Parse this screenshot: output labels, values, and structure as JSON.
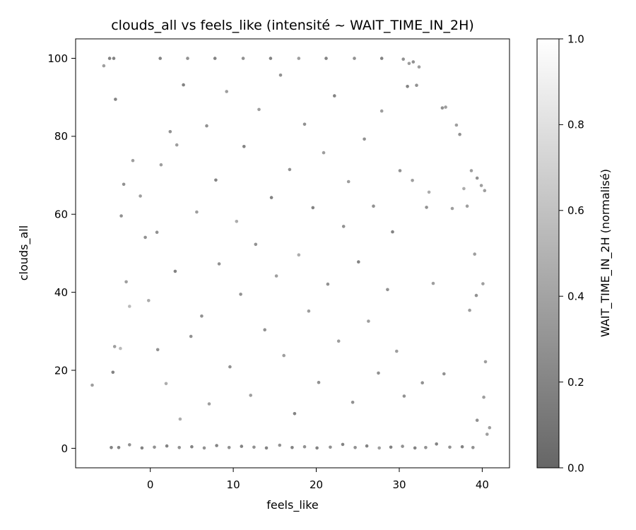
{
  "chart_data": {
    "type": "scatter",
    "title": "clouds_all vs feels_like (intensité ~ WAIT_TIME_IN_2H)",
    "xlabel": "feels_like",
    "ylabel": "clouds_all",
    "xlim": [
      -9,
      43.3
    ],
    "ylim": [
      -5,
      105
    ],
    "xticks": [
      "0",
      "10",
      "20",
      "30",
      "40"
    ],
    "yticks": [
      "0",
      "20",
      "40",
      "60",
      "80",
      "100"
    ],
    "grid": false,
    "colormap": "greys (dark = low, light = high)",
    "colorbar": {
      "label": "WAIT_TIME_IN_2H (normalisé)",
      "range": [
        0.0,
        1.0
      ],
      "ticks": [
        "0.0",
        "0.2",
        "0.4",
        "0.6",
        "0.8",
        "1.0"
      ]
    },
    "series": [
      {
        "points": [
          [
            -7.0,
            16.2,
            0.3
          ],
          [
            -5.6,
            98.1,
            0.3
          ],
          [
            -4.9,
            100,
            0.1
          ],
          [
            -4.4,
            100,
            0.1
          ],
          [
            -4.2,
            89.5,
            0.1
          ],
          [
            -4.3,
            26.1,
            0.3
          ],
          [
            -3.6,
            25.6,
            0.5
          ],
          [
            -4.5,
            19.5,
            0.1
          ],
          [
            -4.7,
            0.2,
            0.1
          ],
          [
            -3.5,
            59.6,
            0.2
          ],
          [
            -2.9,
            42.7,
            0.3
          ],
          [
            -2.5,
            36.4,
            0.5
          ],
          [
            -3.2,
            67.7,
            0.2
          ],
          [
            -2.1,
            73.8,
            0.3
          ],
          [
            -1.2,
            64.7,
            0.3
          ],
          [
            -0.6,
            54.1,
            0.2
          ],
          [
            -0.2,
            37.9,
            0.4
          ],
          [
            0.8,
            55.4,
            0.2
          ],
          [
            1.3,
            72.7,
            0.3
          ],
          [
            0.9,
            25.3,
            0.2
          ],
          [
            1.9,
            16.6,
            0.4
          ],
          [
            2.4,
            81.2,
            0.2
          ],
          [
            3.2,
            77.8,
            0.3
          ],
          [
            3.0,
            45.4,
            0.1
          ],
          [
            4.0,
            93.2,
            0.1
          ],
          [
            3.6,
            7.5,
            0.4
          ],
          [
            4.9,
            28.7,
            0.2
          ],
          [
            5.6,
            60.6,
            0.3
          ],
          [
            6.2,
            33.9,
            0.2
          ],
          [
            6.8,
            82.7,
            0.2
          ],
          [
            7.1,
            11.4,
            0.3
          ],
          [
            7.9,
            68.8,
            0.1
          ],
          [
            8.3,
            47.3,
            0.2
          ],
          [
            9.2,
            91.5,
            0.3
          ],
          [
            9.6,
            20.9,
            0.2
          ],
          [
            10.4,
            58.2,
            0.4
          ],
          [
            10.9,
            39.5,
            0.2
          ],
          [
            11.3,
            77.4,
            0.1
          ],
          [
            12.1,
            13.6,
            0.3
          ],
          [
            12.7,
            52.3,
            0.2
          ],
          [
            13.1,
            86.9,
            0.3
          ],
          [
            13.8,
            30.4,
            0.2
          ],
          [
            14.6,
            64.3,
            0.1
          ],
          [
            15.2,
            44.2,
            0.3
          ],
          [
            15.7,
            95.7,
            0.2
          ],
          [
            16.1,
            23.8,
            0.3
          ],
          [
            16.8,
            71.5,
            0.2
          ],
          [
            17.4,
            8.9,
            0.1
          ],
          [
            17.9,
            49.6,
            0.4
          ],
          [
            18.6,
            83.1,
            0.2
          ],
          [
            19.1,
            35.2,
            0.3
          ],
          [
            19.6,
            61.7,
            0.1
          ],
          [
            20.3,
            16.9,
            0.2
          ],
          [
            20.9,
            75.8,
            0.3
          ],
          [
            21.4,
            42.1,
            0.2
          ],
          [
            22.2,
            90.4,
            0.1
          ],
          [
            22.7,
            27.5,
            0.3
          ],
          [
            23.3,
            56.9,
            0.2
          ],
          [
            23.9,
            68.4,
            0.3
          ],
          [
            24.4,
            11.8,
            0.2
          ],
          [
            25.1,
            47.8,
            0.1
          ],
          [
            25.8,
            79.3,
            0.2
          ],
          [
            26.3,
            32.6,
            0.3
          ],
          [
            26.9,
            62.1,
            0.2
          ],
          [
            27.5,
            19.3,
            0.2
          ],
          [
            27.9,
            86.5,
            0.3
          ],
          [
            28.6,
            40.7,
            0.2
          ],
          [
            29.2,
            55.5,
            0.1
          ],
          [
            29.7,
            24.9,
            0.3
          ],
          [
            30.1,
            71.2,
            0.2
          ],
          [
            30.6,
            13.4,
            0.2
          ],
          [
            31.0,
            92.8,
            0.1
          ],
          [
            31.6,
            68.7,
            0.3
          ],
          [
            32.1,
            93.1,
            0.2
          ],
          [
            32.4,
            97.8,
            0.3
          ],
          [
            32.8,
            16.8,
            0.2
          ],
          [
            33.3,
            61.8,
            0.2
          ],
          [
            33.6,
            65.7,
            0.4
          ],
          [
            34.1,
            42.3,
            0.3
          ],
          [
            35.2,
            87.3,
            0.2
          ],
          [
            35.6,
            87.5,
            0.3
          ],
          [
            35.4,
            19.1,
            0.2
          ],
          [
            36.4,
            61.5,
            0.3
          ],
          [
            36.9,
            82.9,
            0.3
          ],
          [
            37.3,
            80.5,
            0.2
          ],
          [
            37.8,
            66.6,
            0.4
          ],
          [
            38.2,
            62.1,
            0.3
          ],
          [
            38.7,
            71.2,
            0.3
          ],
          [
            39.1,
            49.8,
            0.3
          ],
          [
            39.4,
            69.3,
            0.2
          ],
          [
            39.9,
            67.4,
            0.3
          ],
          [
            40.3,
            66.1,
            0.3
          ],
          [
            40.1,
            42.2,
            0.3
          ],
          [
            39.3,
            39.2,
            0.2
          ],
          [
            38.5,
            35.4,
            0.3
          ],
          [
            40.4,
            22.2,
            0.3
          ],
          [
            40.2,
            13.1,
            0.3
          ],
          [
            40.9,
            5.3,
            0.3
          ],
          [
            40.6,
            3.6,
            0.3
          ],
          [
            39.4,
            7.2,
            0.2
          ],
          [
            38.9,
            0.2,
            0.2
          ],
          [
            37.6,
            0.4,
            0.1
          ],
          [
            36.1,
            0.3,
            0.2
          ],
          [
            34.5,
            1.1,
            0.1
          ],
          [
            33.2,
            0.2,
            0.2
          ],
          [
            31.9,
            0.1,
            0.1
          ],
          [
            30.4,
            0.5,
            0.2
          ],
          [
            29.0,
            0.3,
            0.1
          ],
          [
            27.6,
            0.1,
            0.3
          ],
          [
            26.1,
            0.6,
            0.1
          ],
          [
            24.7,
            0.2,
            0.2
          ],
          [
            23.2,
            1.0,
            0.1
          ],
          [
            21.7,
            0.3,
            0.2
          ],
          [
            20.1,
            0.1,
            0.1
          ],
          [
            18.6,
            0.4,
            0.2
          ],
          [
            17.1,
            0.2,
            0.1
          ],
          [
            15.6,
            0.8,
            0.2
          ],
          [
            14.0,
            0.1,
            0.1
          ],
          [
            12.5,
            0.3,
            0.2
          ],
          [
            11.0,
            0.5,
            0.1
          ],
          [
            9.5,
            0.2,
            0.2
          ],
          [
            8.0,
            0.7,
            0.1
          ],
          [
            6.5,
            0.1,
            0.2
          ],
          [
            5.0,
            0.4,
            0.1
          ],
          [
            3.5,
            0.2,
            0.2
          ],
          [
            2.0,
            0.6,
            0.1
          ],
          [
            0.5,
            0.3,
            0.2
          ],
          [
            -1.0,
            0.1,
            0.1
          ],
          [
            -2.5,
            0.9,
            0.2
          ],
          [
            -3.8,
            0.2,
            0.1
          ],
          [
            1.2,
            100,
            0.1
          ],
          [
            4.5,
            100,
            0.2
          ],
          [
            7.8,
            100,
            0.1
          ],
          [
            11.2,
            100,
            0.2
          ],
          [
            14.5,
            100,
            0.1
          ],
          [
            17.9,
            100,
            0.3
          ],
          [
            21.2,
            100,
            0.1
          ],
          [
            24.6,
            100,
            0.2
          ],
          [
            27.9,
            100,
            0.1
          ],
          [
            30.5,
            99.8,
            0.2
          ],
          [
            31.2,
            98.7,
            0.3
          ],
          [
            31.7,
            99.1,
            0.2
          ]
        ]
      }
    ]
  }
}
